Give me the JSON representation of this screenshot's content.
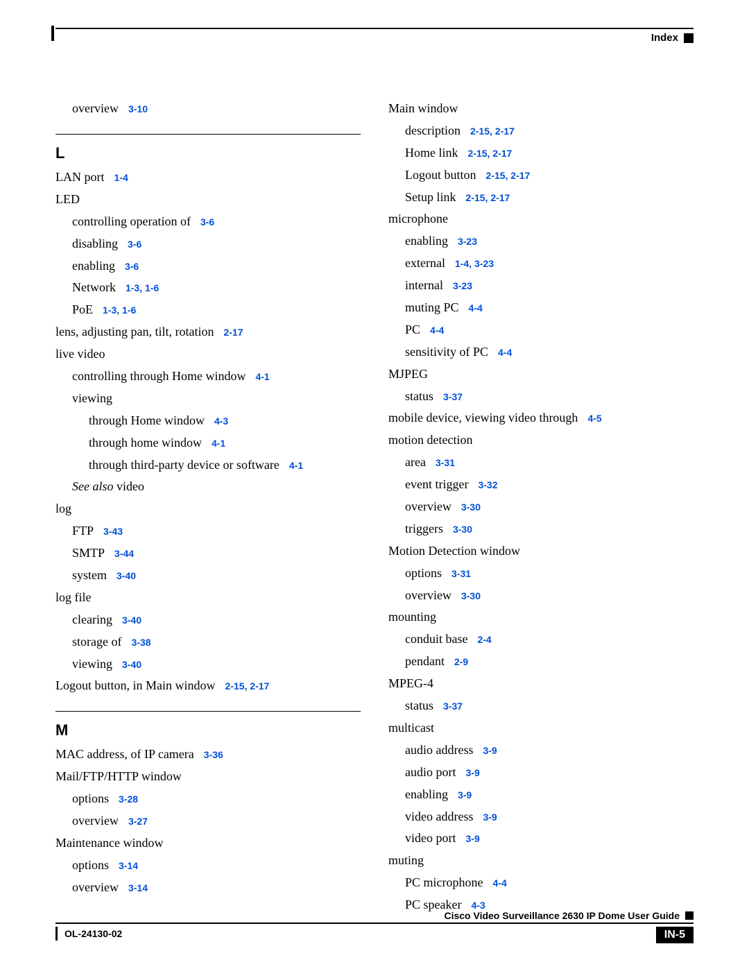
{
  "colors": {
    "text": "#000000",
    "link": "#0050d8",
    "background": "#ffffff"
  },
  "header": {
    "label": "Index"
  },
  "footer": {
    "guide": "Cisco Video Surveillance 2630 IP Dome User Guide",
    "docid": "OL-24130-02",
    "pagenum": "IN-5"
  },
  "letters": {
    "L": "L",
    "M": "M"
  },
  "left": {
    "overview": "overview",
    "overview_ref": "3-10",
    "lanport": "LAN port",
    "lanport_ref": "1-4",
    "led": "LED",
    "led_ctrl": "controlling operation of",
    "led_ctrl_ref": "3-6",
    "led_dis": "disabling",
    "led_dis_ref": "3-6",
    "led_en": "enabling",
    "led_en_ref": "3-6",
    "led_net": "Network",
    "led_net_ref": "1-3, 1-6",
    "led_poe": "PoE",
    "led_poe_ref": "1-3, 1-6",
    "lens": "lens, adjusting pan, tilt, rotation",
    "lens_ref": "2-17",
    "live": "live video",
    "live_ctrl": "controlling through Home window",
    "live_ctrl_ref": "4-1",
    "viewing": "viewing",
    "v_home": "through Home window",
    "v_home_ref": "4-3",
    "v_home2": "through home window",
    "v_home2_ref": "4-1",
    "v_third": "through third-party device or software",
    "v_third_ref": "4-1",
    "seealso_pre": "See also",
    "seealso_post": " video",
    "log": "log",
    "log_ftp": "FTP",
    "log_ftp_ref": "3-43",
    "log_smtp": "SMTP",
    "log_smtp_ref": "3-44",
    "log_sys": "system",
    "log_sys_ref": "3-40",
    "logfile": "log file",
    "lf_clear": "clearing",
    "lf_clear_ref": "3-40",
    "lf_stor": "storage of",
    "lf_stor_ref": "3-38",
    "lf_view": "viewing",
    "lf_view_ref": "3-40",
    "logout": "Logout button, in Main window",
    "logout_ref": "2-15, 2-17",
    "mac": "MAC address, of IP camera",
    "mac_ref": "3-36",
    "mail": "Mail/FTP/HTTP window",
    "mail_opt": "options",
    "mail_opt_ref": "3-28",
    "mail_ov": "overview",
    "mail_ov_ref": "3-27",
    "maint": "Maintenance window",
    "maint_opt": "options",
    "maint_opt_ref": "3-14",
    "maint_ov": "overview",
    "maint_ov_ref": "3-14"
  },
  "right": {
    "mainwin": "Main window",
    "mw_desc": "description",
    "mw_desc_ref": "2-15, 2-17",
    "mw_home": "Home link",
    "mw_home_ref": "2-15, 2-17",
    "mw_logout": "Logout button",
    "mw_logout_ref": "2-15, 2-17",
    "mw_setup": "Setup link",
    "mw_setup_ref": "2-15, 2-17",
    "mic": "microphone",
    "mic_en": "enabling",
    "mic_en_ref": "3-23",
    "mic_ext": "external",
    "mic_ext_ref": "1-4, 3-23",
    "mic_int": "internal",
    "mic_int_ref": "3-23",
    "mic_mute": "muting PC",
    "mic_mute_ref": "4-4",
    "mic_pc": "PC",
    "mic_pc_ref": "4-4",
    "mic_sens": "sensitivity of PC",
    "mic_sens_ref": "4-4",
    "mjpeg": "MJPEG",
    "mj_status": "status",
    "mj_status_ref": "3-37",
    "mobile": "mobile device, viewing video through",
    "mobile_ref": "4-5",
    "motion": "motion detection",
    "md_area": "area",
    "md_area_ref": "3-31",
    "md_event": "event trigger",
    "md_event_ref": "3-32",
    "md_ov": "overview",
    "md_ov_ref": "3-30",
    "md_trig": "triggers",
    "md_trig_ref": "3-30",
    "mdwin": "Motion Detection window",
    "mdw_opt": "options",
    "mdw_opt_ref": "3-31",
    "mdw_ov": "overview",
    "mdw_ov_ref": "3-30",
    "mount": "mounting",
    "mt_cond": "conduit base",
    "mt_cond_ref": "2-4",
    "mt_pend": "pendant",
    "mt_pend_ref": "2-9",
    "mpeg4": "MPEG-4",
    "mp_status": "status",
    "mp_status_ref": "3-37",
    "multi": "multicast",
    "mc_aa": "audio address",
    "mc_aa_ref": "3-9",
    "mc_ap": "audio port",
    "mc_ap_ref": "3-9",
    "mc_en": "enabling",
    "mc_en_ref": "3-9",
    "mc_va": "video address",
    "mc_va_ref": "3-9",
    "mc_vp": "video port",
    "mc_vp_ref": "3-9",
    "muting": "muting",
    "mu_mic": "PC microphone",
    "mu_mic_ref": "4-4",
    "mu_spk": "PC speaker",
    "mu_spk_ref": "4-3"
  }
}
